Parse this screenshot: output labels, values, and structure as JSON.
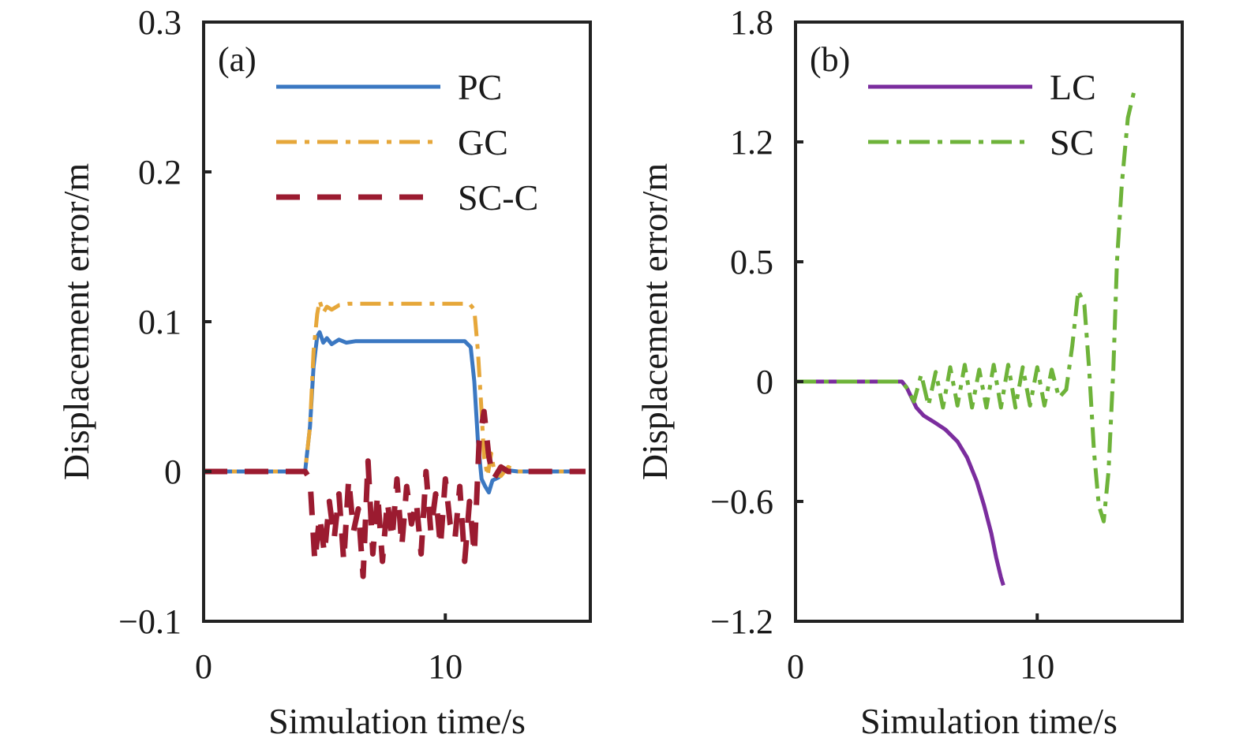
{
  "chart_data": [
    {
      "type": "line",
      "panel_label": "(a)",
      "xlabel": "Simulation time/s",
      "ylabel": "Displacement error/m",
      "xlim": [
        0,
        16
      ],
      "ylim": [
        -0.1,
        0.3
      ],
      "xticks": [
        0,
        10
      ],
      "xtick_labels": [
        "0",
        "10"
      ],
      "yticks": [
        -0.1,
        0,
        0.1,
        0.2,
        0.3
      ],
      "ytick_labels": [
        "−0.1",
        "0",
        "0.1",
        "0.2",
        "0.3"
      ],
      "legend": "top-right",
      "grid": false,
      "series": [
        {
          "name": "PC",
          "color": "#3b78c2",
          "dash": "solid",
          "x": [
            0,
            4.2,
            4.4,
            4.55,
            4.7,
            4.8,
            4.95,
            5.1,
            5.3,
            5.6,
            5.9,
            6.3,
            7,
            8,
            9,
            10,
            10.8,
            11.05,
            11.2,
            11.35,
            11.5,
            11.65,
            11.8,
            11.95,
            12.2,
            12.5,
            13,
            15.8
          ],
          "y": [
            0,
            0,
            0.03,
            0.07,
            0.09,
            0.093,
            0.086,
            0.089,
            0.085,
            0.088,
            0.086,
            0.087,
            0.087,
            0.087,
            0.087,
            0.087,
            0.087,
            0.083,
            0.06,
            0.02,
            -0.005,
            -0.01,
            -0.014,
            -0.006,
            -0.004,
            0.001,
            0,
            0
          ]
        },
        {
          "name": "GC",
          "color": "#e6a73a",
          "dash": "dashdot",
          "x": [
            0,
            4.2,
            4.4,
            4.55,
            4.7,
            4.8,
            4.95,
            5.1,
            5.3,
            5.6,
            6,
            6.5,
            7,
            8,
            9,
            10,
            11,
            11.2,
            11.35,
            11.5,
            11.6,
            11.75,
            11.9,
            12.05,
            12.3,
            12.6,
            13,
            15.8
          ],
          "y": [
            0,
            0,
            0.03,
            0.08,
            0.105,
            0.114,
            0.106,
            0.11,
            0.108,
            0.111,
            0.112,
            0.112,
            0.112,
            0.112,
            0.112,
            0.112,
            0.112,
            0.108,
            0.08,
            0.04,
            0.01,
            -0.003,
            0.012,
            -0.002,
            -0.003,
            0.003,
            0,
            0
          ]
        },
        {
          "name": "SC-C",
          "color": "#9b1b30",
          "dash": "dashed",
          "x": [
            0,
            4.2,
            4.4,
            4.6,
            4.8,
            5,
            5.2,
            5.4,
            5.6,
            5.8,
            6,
            6.2,
            6.4,
            6.6,
            6.8,
            7,
            7.2,
            7.4,
            7.6,
            7.8,
            8,
            8.2,
            8.4,
            8.6,
            8.8,
            9,
            9.2,
            9.4,
            9.6,
            9.8,
            10,
            10.2,
            10.4,
            10.6,
            10.8,
            11,
            11.2,
            11.4,
            11.6,
            11.8,
            12,
            12.3,
            12.6,
            13,
            15.8
          ],
          "y": [
            0,
            0,
            -0.005,
            -0.06,
            -0.03,
            -0.055,
            -0.02,
            -0.045,
            -0.015,
            -0.06,
            -0.005,
            -0.04,
            -0.025,
            -0.07,
            0.007,
            -0.055,
            -0.015,
            -0.06,
            -0.02,
            -0.045,
            -0.005,
            -0.05,
            -0.01,
            -0.035,
            -0.02,
            -0.055,
            0,
            -0.04,
            -0.015,
            -0.05,
            -0.005,
            -0.035,
            -0.045,
            -0.01,
            -0.06,
            -0.02,
            -0.055,
            0.02,
            0.04,
            0.01,
            -0.005,
            0.003,
            0,
            0,
            0
          ]
        }
      ]
    },
    {
      "type": "line",
      "panel_label": "(b)",
      "xlabel": "Simulation time/s",
      "ylabel": "Displacement error/m",
      "xlim": [
        0,
        16
      ],
      "ylim": [
        -1.2,
        1.8
      ],
      "xticks": [
        0,
        10
      ],
      "xtick_labels": [
        "0",
        "10"
      ],
      "yticks": [
        -1.2,
        -0.6,
        0,
        0.5,
        1.2,
        1.8
      ],
      "ytick_labels": [
        "−1.2",
        "−0.6",
        "0",
        "0.5",
        "1.2",
        "1.8"
      ],
      "legend": "top-right",
      "grid": false,
      "series": [
        {
          "name": "LC",
          "color": "#7b2d9e",
          "dash": "solid",
          "x": [
            0,
            4.4,
            4.6,
            4.8,
            5,
            5.3,
            5.7,
            6.2,
            6.7,
            7.1,
            7.5,
            7.8,
            8.1,
            8.3,
            8.5,
            8.6
          ],
          "y": [
            0,
            0,
            -0.03,
            -0.08,
            -0.13,
            -0.17,
            -0.2,
            -0.24,
            -0.3,
            -0.38,
            -0.5,
            -0.62,
            -0.76,
            -0.88,
            -0.98,
            -1.02
          ]
        },
        {
          "name": "SC",
          "color": "#6eb33a",
          "dash": "dashdot",
          "x": [
            0,
            4.4,
            4.65,
            4.9,
            5.2,
            5.5,
            5.8,
            6.1,
            6.4,
            6.7,
            7,
            7.3,
            7.6,
            7.9,
            8.2,
            8.5,
            8.8,
            9.1,
            9.4,
            9.7,
            10,
            10.3,
            10.6,
            10.9,
            11.2,
            11.45,
            11.7,
            11.95,
            12.15,
            12.35,
            12.55,
            12.75,
            12.95,
            13.15,
            13.3,
            13.5,
            13.75,
            14
          ],
          "y": [
            0,
            0,
            -0.04,
            -0.1,
            0.03,
            -0.12,
            0.04,
            -0.13,
            0.06,
            -0.12,
            0.07,
            -0.13,
            0.05,
            -0.13,
            0.07,
            -0.13,
            0.07,
            -0.13,
            0.06,
            -0.12,
            0.06,
            -0.12,
            0.05,
            -0.08,
            -0.04,
            0.15,
            0.38,
            0.32,
            0.05,
            -0.35,
            -0.62,
            -0.7,
            -0.45,
            0.05,
            0.5,
            0.95,
            1.32,
            1.45
          ]
        }
      ]
    }
  ]
}
